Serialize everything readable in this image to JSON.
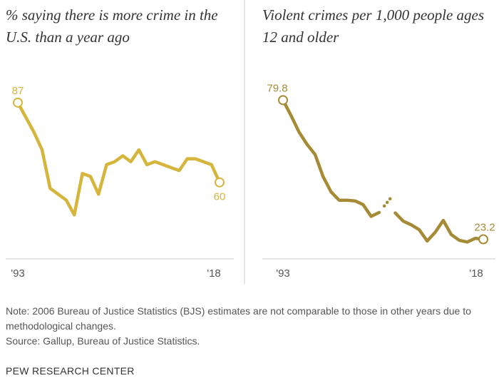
{
  "chart_data": [
    {
      "type": "line",
      "title": "% saying there is more crime in the U.S. than a year ago",
      "color": "#D5B53C",
      "ylim": [
        30,
        100
      ],
      "x_tick_labels": [
        "'93",
        "'18"
      ],
      "series": [
        {
          "x": [
            1993,
            1994,
            1995,
            1996,
            1997,
            1998,
            1999,
            2000,
            2001,
            2002,
            2003,
            2004,
            2005,
            2006,
            2007,
            2008,
            2009,
            2010,
            2011,
            2012,
            2013,
            2014,
            2015,
            2016,
            2017,
            2018
          ],
          "values": [
            87,
            82,
            77,
            71,
            58,
            56,
            54,
            49,
            63,
            62,
            56,
            66,
            67,
            69,
            67,
            71,
            66,
            67,
            66,
            65,
            64,
            68,
            68,
            67,
            66,
            60
          ]
        }
      ],
      "labels": [
        {
          "text": "87",
          "x": 1993,
          "y": 87
        },
        {
          "text": "60",
          "x": 2018,
          "y": 60
        }
      ]
    },
    {
      "type": "line",
      "title": "Violent crimes per 1,000 people ages 12 and older",
      "color": "#A68B36",
      "ylim": [
        10,
        95
      ],
      "x_tick_labels": [
        "'93",
        "'18"
      ],
      "series": [
        {
          "segments": [
            {
              "x": [
                1993,
                1994,
                1995,
                1996,
                1997,
                1998,
                1999,
                2000,
                2001,
                2002,
                2003,
                2004,
                2005
              ],
              "values": [
                79.8,
                73.6,
                66.8,
                61.8,
                57.7,
                48.7,
                42.5,
                39.1,
                39.1,
                38.8,
                37.3,
                32.5,
                34.1
              ]
            },
            {
              "x": [
                2006
              ],
              "values": [
                38.2
              ],
              "dotted": true
            },
            {
              "x": [
                2007,
                2008,
                2009,
                2010,
                2011,
                2012,
                2013,
                2014,
                2015,
                2016,
                2017,
                2018
              ],
              "values": [
                33.9,
                30.6,
                29.1,
                27.1,
                22.5,
                26.1,
                30.9,
                25.1,
                22.8,
                22.1,
                23.6,
                23.2
              ]
            }
          ]
        }
      ],
      "labels": [
        {
          "text": "79.8",
          "x": 1993,
          "y": 79.8
        },
        {
          "text": "23.2",
          "x": 2018,
          "y": 23.2
        }
      ]
    }
  ],
  "notes": {
    "note": "Note: 2006 Bureau of Justice Statistics (BJS) estimates are not comparable to those in other years due to methodological changes.",
    "source": "Source: Gallup, Bureau of Justice Statistics."
  },
  "brand": "PEW RESEARCH CENTER"
}
